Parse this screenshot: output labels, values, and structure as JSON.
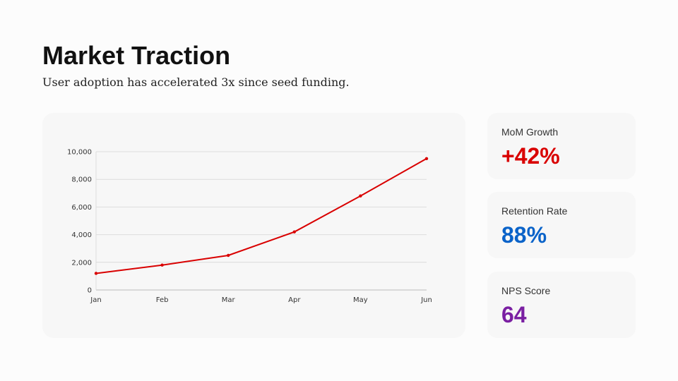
{
  "header": {
    "title": "Market Traction",
    "subtitle": "User adoption has accelerated 3x since seed funding."
  },
  "chart_data": {
    "type": "line",
    "categories": [
      "Jan",
      "Feb",
      "Mar",
      "Apr",
      "May",
      "Jun"
    ],
    "series": [
      {
        "values": [
          1200,
          1800,
          2500,
          4200,
          6800,
          9500
        ],
        "color": "#d90000"
      }
    ],
    "ylim": [
      0,
      10000
    ],
    "yticks": [
      "0",
      "2,000",
      "4,000",
      "6,000",
      "8,000",
      "10,000"
    ],
    "ytick_values": [
      0,
      2000,
      4000,
      6000,
      8000,
      10000
    ],
    "grid": true,
    "title": "",
    "xlabel": "",
    "ylabel": ""
  },
  "stats": [
    {
      "label": "MoM Growth",
      "value": "+42%",
      "color": "#d90000"
    },
    {
      "label": "Retention Rate",
      "value": "88%",
      "color": "#0a63c9"
    },
    {
      "label": "NPS Score",
      "value": "64",
      "color": "#7a1fa2"
    }
  ]
}
